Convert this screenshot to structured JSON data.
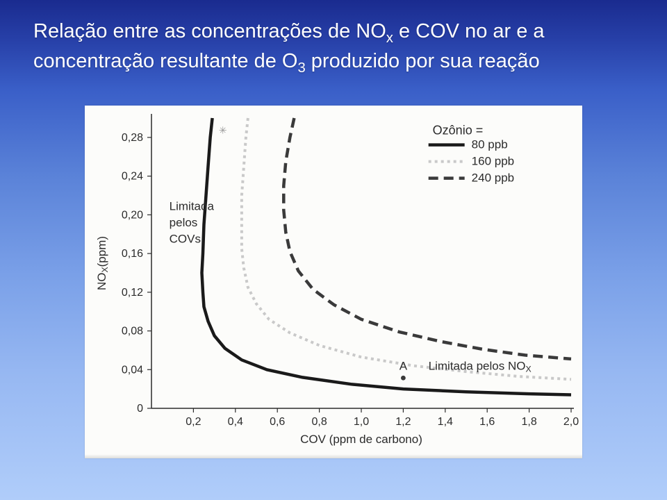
{
  "title": {
    "line1_a": "Relação entre as concentrações de NO",
    "line1_sub": "x",
    "line1_b": " e COV no ar e a",
    "line2_a": "concentração resultante de O",
    "line2_sub": "3",
    "line2_b": " produzido por sua reação"
  },
  "chart": {
    "type": "line",
    "background_color": "#fcfcfa",
    "axis_color": "#2b2b2b",
    "xlabel": "COV (ppm de carbono)",
    "ylabel_a": "NO",
    "ylabel_sub": "X",
    "ylabel_b": "(ppm)",
    "label_fontsize": 17,
    "tick_fontsize": 16,
    "xlim": [
      0,
      2.0
    ],
    "ylim": [
      0,
      0.3
    ],
    "xticks": [
      0.2,
      0.4,
      0.6,
      0.8,
      1.0,
      1.2,
      1.4,
      1.6,
      1.8,
      2.0
    ],
    "yticks": [
      0,
      0.04,
      0.08,
      0.12,
      0.16,
      0.2,
      0.24,
      0.28
    ],
    "ytick_labels": [
      "0",
      "0,04",
      "0,08",
      "0,12",
      "0,16",
      "0,20",
      "0,24",
      "0,28"
    ],
    "xtick_labels": [
      "0,2",
      "0,4",
      "0,6",
      "0,8",
      "1,0",
      "1,2",
      "1,4",
      "1,6",
      "1,8",
      "2,0"
    ],
    "legend": {
      "title": "Ozônio =",
      "items": [
        {
          "label": "80 ppb",
          "style": "solid",
          "color": "#1a1a1a",
          "width": 4.5
        },
        {
          "label": "160 ppb",
          "style": "dotted",
          "color": "#c9c9c9",
          "width": 4
        },
        {
          "label": "240 ppb",
          "style": "dashed",
          "color": "#3a3a3a",
          "width": 4.5
        }
      ],
      "fontsize": 17
    },
    "annotations": {
      "voc_limited_1": "Limitada",
      "voc_limited_2": "pelos",
      "voc_limited_3": "COVs",
      "nox_limited_a": "Limitada pelos NO",
      "nox_limited_sub": "X",
      "point_A_label": "A",
      "point_A_xy": [
        1.2,
        0.04
      ]
    },
    "series": {
      "c80": {
        "color": "#1a1a1a",
        "width": 4.5,
        "dash": "",
        "points": [
          [
            0.29,
            0.3
          ],
          [
            0.28,
            0.28
          ],
          [
            0.27,
            0.25
          ],
          [
            0.26,
            0.22
          ],
          [
            0.25,
            0.19
          ],
          [
            0.245,
            0.16
          ],
          [
            0.24,
            0.14
          ],
          [
            0.245,
            0.12
          ],
          [
            0.25,
            0.105
          ],
          [
            0.27,
            0.09
          ],
          [
            0.3,
            0.075
          ],
          [
            0.35,
            0.062
          ],
          [
            0.43,
            0.05
          ],
          [
            0.55,
            0.04
          ],
          [
            0.72,
            0.032
          ],
          [
            0.95,
            0.025
          ],
          [
            1.2,
            0.02
          ],
          [
            1.5,
            0.017
          ],
          [
            1.8,
            0.015
          ],
          [
            2.0,
            0.014
          ]
        ]
      },
      "c160": {
        "color": "#c9c9c9",
        "width": 4,
        "dash": "4 5",
        "points": [
          [
            0.46,
            0.3
          ],
          [
            0.45,
            0.28
          ],
          [
            0.44,
            0.25
          ],
          [
            0.43,
            0.22
          ],
          [
            0.43,
            0.19
          ],
          [
            0.43,
            0.165
          ],
          [
            0.44,
            0.145
          ],
          [
            0.46,
            0.125
          ],
          [
            0.5,
            0.108
          ],
          [
            0.56,
            0.092
          ],
          [
            0.66,
            0.078
          ],
          [
            0.8,
            0.065
          ],
          [
            1.0,
            0.053
          ],
          [
            1.25,
            0.044
          ],
          [
            1.5,
            0.038
          ],
          [
            1.75,
            0.033
          ],
          [
            2.0,
            0.03
          ]
        ]
      },
      "c240": {
        "color": "#3a3a3a",
        "width": 4.5,
        "dash": "14 8",
        "points": [
          [
            0.68,
            0.3
          ],
          [
            0.66,
            0.28
          ],
          [
            0.64,
            0.255
          ],
          [
            0.63,
            0.23
          ],
          [
            0.63,
            0.205
          ],
          [
            0.64,
            0.182
          ],
          [
            0.66,
            0.162
          ],
          [
            0.7,
            0.142
          ],
          [
            0.77,
            0.123
          ],
          [
            0.87,
            0.107
          ],
          [
            1.0,
            0.092
          ],
          [
            1.18,
            0.079
          ],
          [
            1.38,
            0.069
          ],
          [
            1.58,
            0.061
          ],
          [
            1.78,
            0.055
          ],
          [
            2.0,
            0.051
          ]
        ]
      }
    }
  }
}
